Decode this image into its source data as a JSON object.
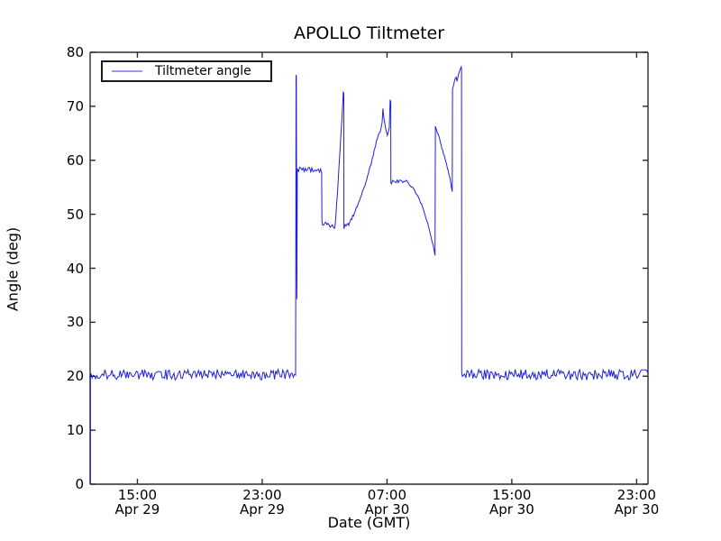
{
  "chart_data": {
    "type": "line",
    "title": "APOLLO Tiltmeter",
    "xlabel": "Date (GMT)",
    "ylabel": "Angle (deg)",
    "x_unit": "hours since Apr 29 12:00 GMT",
    "xlim": [
      0,
      35.76
    ],
    "ylim": [
      0,
      80
    ],
    "yticks": [
      0,
      10,
      20,
      30,
      40,
      50,
      60,
      70,
      80
    ],
    "xticks": [
      {
        "t": 3.03,
        "time": "15:00",
        "date": "Apr 29"
      },
      {
        "t": 11.03,
        "time": "23:00",
        "date": "Apr 29"
      },
      {
        "t": 19.03,
        "time": "07:00",
        "date": "Apr 30"
      },
      {
        "t": 27.03,
        "time": "15:00",
        "date": "Apr 30"
      },
      {
        "t": 35.03,
        "time": "23:00",
        "date": "Apr 30"
      }
    ],
    "grid": false,
    "legend_position": "upper left",
    "line_color": "#0d0dd8",
    "axis_color": "#2b2b2b",
    "series": [
      {
        "name": "Tiltmeter angle",
        "segments": [
          {
            "type": "pts",
            "pts": [
              [
                0.02,
                0
              ],
              [
                0.02,
                19.9
              ]
            ]
          },
          {
            "type": "noise",
            "t0": 0.05,
            "t1": 13.17,
            "v0": 20.3,
            "v1": 20.3,
            "amp": 1.0,
            "step": 0.075
          },
          {
            "type": "pts",
            "pts": [
              [
                13.2,
                75.8
              ],
              [
                13.22,
                75.5
              ],
              [
                13.25,
                34.3
              ],
              [
                13.28,
                57.6
              ]
            ]
          },
          {
            "type": "noise",
            "t0": 13.3,
            "t1": 14.84,
            "v0": 58.4,
            "v1": 58.0,
            "amp": 0.45,
            "step": 0.07
          },
          {
            "type": "pts",
            "pts": [
              [
                14.86,
                48.8
              ]
            ]
          },
          {
            "type": "noise",
            "t0": 14.9,
            "t1": 15.66,
            "v0": 48.4,
            "v1": 47.6,
            "amp": 0.45,
            "step": 0.07
          },
          {
            "type": "jpath",
            "pts": [
              [
                15.7,
                47.9
              ],
              [
                15.9,
                56.0
              ],
              [
                16.08,
                65.0
              ],
              [
                16.23,
                72.6
              ]
            ],
            "jit": 0.5,
            "step": 0.045
          },
          {
            "type": "pts",
            "pts": [
              [
                16.26,
                72.4
              ],
              [
                16.27,
                47.3
              ],
              [
                16.32,
                47.9
              ]
            ]
          },
          {
            "type": "noise",
            "t0": 16.35,
            "t1": 16.58,
            "v0": 48.0,
            "v1": 48.2,
            "amp": 0.3,
            "step": 0.06
          },
          {
            "type": "jpath",
            "pts": [
              [
                16.6,
                48.2
              ],
              [
                17.0,
                50.6
              ],
              [
                17.35,
                53.3
              ],
              [
                17.73,
                56.4
              ],
              [
                18.05,
                59.8
              ],
              [
                18.25,
                62.2
              ],
              [
                18.4,
                63.9
              ],
              [
                18.5,
                64.9
              ]
            ],
            "jit": 0.25,
            "step": 0.055
          },
          {
            "type": "pts",
            "pts": [
              [
                18.6,
                65.3
              ],
              [
                18.72,
                67.0
              ],
              [
                18.77,
                69.6
              ],
              [
                18.82,
                68.0
              ],
              [
                18.95,
                65.8
              ],
              [
                19.05,
                64.6
              ],
              [
                19.12,
                65.3
              ],
              [
                19.18,
                66.1
              ],
              [
                19.21,
                69.2
              ],
              [
                19.23,
                71.2
              ],
              [
                19.27,
                70.8
              ],
              [
                19.28,
                55.8
              ]
            ]
          },
          {
            "type": "noise",
            "t0": 19.32,
            "t1": 20.33,
            "v0": 55.9,
            "v1": 56.2,
            "amp": 0.4,
            "step": 0.07
          },
          {
            "type": "jpath",
            "pts": [
              [
                20.35,
                55.9
              ],
              [
                20.7,
                54.9
              ],
              [
                21.0,
                53.4
              ],
              [
                21.3,
                51.4
              ],
              [
                21.6,
                48.7
              ],
              [
                21.85,
                45.9
              ],
              [
                22.05,
                43.3
              ],
              [
                22.11,
                42.4
              ]
            ],
            "jit": 0.2,
            "step": 0.055
          },
          {
            "type": "pts",
            "pts": [
              [
                22.13,
                66.3
              ]
            ]
          },
          {
            "type": "jpath",
            "pts": [
              [
                22.16,
                66.0
              ],
              [
                22.45,
                63.3
              ],
              [
                22.75,
                60.3
              ],
              [
                23.05,
                56.9
              ],
              [
                23.21,
                54.2
              ]
            ],
            "jit": 0.3,
            "step": 0.05
          },
          {
            "type": "pts",
            "pts": [
              [
                23.23,
                73.2
              ],
              [
                23.3,
                73.9
              ],
              [
                23.38,
                75.0
              ],
              [
                23.46,
                75.4
              ],
              [
                23.52,
                74.6
              ],
              [
                23.62,
                76.0
              ],
              [
                23.72,
                76.8
              ],
              [
                23.79,
                77.3
              ],
              [
                23.81,
                77.0
              ],
              [
                23.82,
                20.7
              ]
            ]
          },
          {
            "type": "noise",
            "t0": 23.86,
            "t1": 35.74,
            "v0": 20.3,
            "v1": 20.3,
            "amp": 1.0,
            "step": 0.075
          }
        ]
      }
    ]
  },
  "legend": {
    "label": "Tiltmeter angle"
  }
}
